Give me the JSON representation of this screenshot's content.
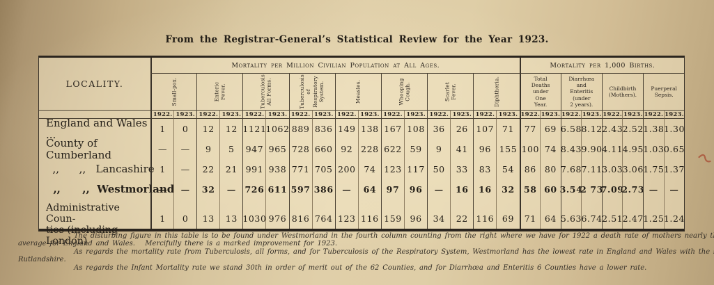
{
  "title": "From the Registrar-General’s Statistical Review for the Year 1923.",
  "table": {
    "locality_header": "LOCALITY.",
    "sections": [
      {
        "label": "Mortality per Million Civilian Population at All Ages."
      },
      {
        "label": "Mortality per 1,000 Births."
      }
    ],
    "million_columns": [
      "Small-pox.",
      "Enteric\nFever.",
      "Tuberculosis\nAll Forms.",
      "Tuberculosis\nof\nRespiratory\nSystem.",
      "Measles.",
      "Whooping\nCough.",
      "Scarlet\nFever.",
      "Diphtheria."
    ],
    "births_columns": [
      "Total\nDeaths\nunder\nOne\nYear.",
      "Diarrhœa\nand\nEnteritis\n(under\n2 years).",
      "Childbirth\n(Mothers).",
      "Puerperal\nSepsis."
    ],
    "year_labels": [
      "1922.",
      "1923."
    ],
    "rows": [
      {
        "locality_lines": [
          "England and Wales ..."
        ],
        "bold": false,
        "values": [
          "1",
          "0",
          "12",
          "12",
          "1121",
          "1062",
          "889",
          "836",
          "149",
          "138",
          "167",
          "108",
          "36",
          "26",
          "107",
          "71",
          "77",
          "69",
          "6.58",
          "8.12",
          "2.43",
          "2.52",
          "1.38",
          "1.30"
        ]
      },
      {
        "locality_lines": [
          "County of Cumberland"
        ],
        "bold": false,
        "values": [
          "—",
          "—",
          "9",
          "5",
          "947",
          "965",
          "728",
          "660",
          "92",
          "228",
          "622",
          "59",
          "9",
          "41",
          "96",
          "155",
          "100",
          "74",
          "8.43",
          "9.90",
          "4.11",
          "4.95",
          "1.03",
          "0.65"
        ]
      },
      {
        "locality_lines": [
          "  ,,      ,,   Lancashire"
        ],
        "bold": false,
        "values": [
          "1",
          "—",
          "22",
          "21",
          "991",
          "938",
          "771",
          "705",
          "200",
          "74",
          "123",
          "117",
          "50",
          "33",
          "83",
          "54",
          "86",
          "80",
          "7.68",
          "7.11",
          "3.03",
          "3.06",
          "1.75",
          "1.37"
        ]
      },
      {
        "locality_lines": [
          "  ,,      ,,  Westmorland"
        ],
        "bold": true,
        "values": [
          "—",
          "—",
          "32",
          "—",
          "726",
          "611",
          "597",
          "386",
          "—",
          "64",
          "97",
          "96",
          "—",
          "16",
          "16",
          "32",
          "58",
          "60",
          "3.54",
          "2 73",
          "7.09",
          "2.73",
          "—",
          "—"
        ]
      },
      {
        "locality_lines": [
          "Administrative Coun-",
          "ties (including London)"
        ],
        "bold": false,
        "values": [
          "1",
          "0",
          "13",
          "13",
          "1030",
          "976",
          "816",
          "764",
          "123",
          "116",
          "159",
          "96",
          "34",
          "22",
          "116",
          "69",
          "71",
          "64",
          "5.63",
          "6.74",
          "2.51",
          "2.47",
          "1.25",
          "1.24"
        ]
      }
    ]
  },
  "footnotes": [
    {
      "indent": true,
      "text": "The disturbing figure in this table is to be found under Westmorland in the fourth column counting from the right where we have for 1922 a death rate of mothers nearly three times in excess of the"
    },
    {
      "indent": false,
      "text": "average for England and Wales.   Mercifully there is a marked improvement for 1923."
    },
    {
      "indent": true,
      "text": "As regards the mortality rate from Tuberculosis, all forms, and for Tuberculosis of the Respiratory System, Westmorland has the lowest rate in England and Wales with the single exception of"
    },
    {
      "indent": false,
      "text": "Rutlandshire."
    },
    {
      "indent": true,
      "text": "As regards the Infant Mortality rate we stand 30th in order of merit out of the 62 Counties, and for Diarrhœa and Enteritis 6 Counties have a lower rate."
    }
  ],
  "colors": {
    "paper": "#ddcba4",
    "ink": "#2c2620",
    "accent_mark": "#a84a32"
  }
}
